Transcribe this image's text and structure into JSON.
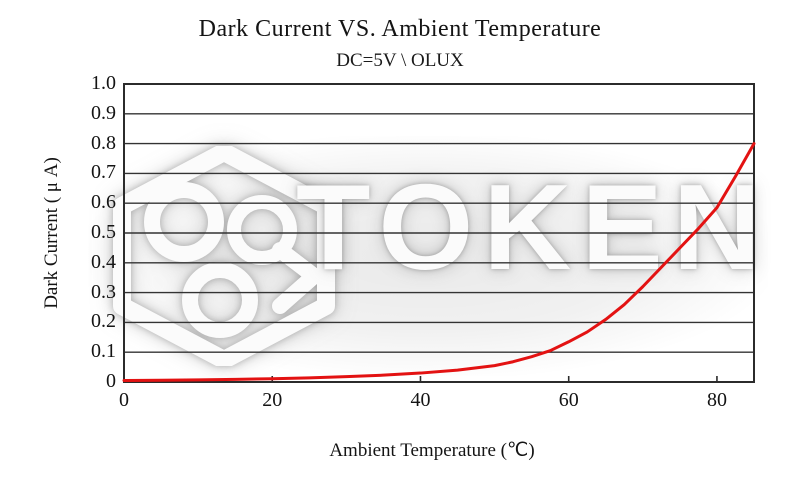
{
  "title": "Dark Current VS. Ambient Temperature",
  "subtitle": "DC=5V \\ OLUX",
  "watermark": {
    "text": "TOKEN",
    "logo_icon": "token-hexagon-logo"
  },
  "chart_data": {
    "type": "line",
    "title": "Dark Current VS. Ambient Temperature",
    "subtitle": "DC=5V \\ OLUX",
    "xlabel": "Ambient Temperature (℃)",
    "ylabel": "Dark Current ( μ A)",
    "xlim": [
      0,
      85
    ],
    "ylim": [
      0,
      1.0
    ],
    "xticks": [
      0,
      20,
      40,
      60,
      80
    ],
    "ytick_labels": [
      "1.0",
      "0.9",
      "0.8",
      "0.7",
      "0.6",
      "0.5",
      "0.4",
      "0.3",
      "0.2",
      "0.1",
      "0"
    ],
    "grid": "horizontal",
    "legend": "none",
    "colors": {
      "curve": "#e31212",
      "grid": "#333333",
      "border": "#2b2b2b",
      "text": "#141414"
    },
    "series": [
      {
        "name": "Dark Current",
        "color": "#e31212",
        "x": [
          0,
          5,
          10,
          15,
          20,
          25,
          30,
          35,
          40,
          45,
          50,
          52.5,
          55,
          57.5,
          60,
          62.5,
          65,
          67.5,
          70,
          72.5,
          75,
          77.5,
          80,
          82.5,
          85
        ],
        "y": [
          0.005,
          0.006,
          0.007,
          0.009,
          0.011,
          0.014,
          0.018,
          0.023,
          0.03,
          0.04,
          0.055,
          0.068,
          0.085,
          0.105,
          0.135,
          0.168,
          0.21,
          0.26,
          0.32,
          0.385,
          0.45,
          0.515,
          0.585,
          0.69,
          0.8
        ]
      }
    ]
  }
}
